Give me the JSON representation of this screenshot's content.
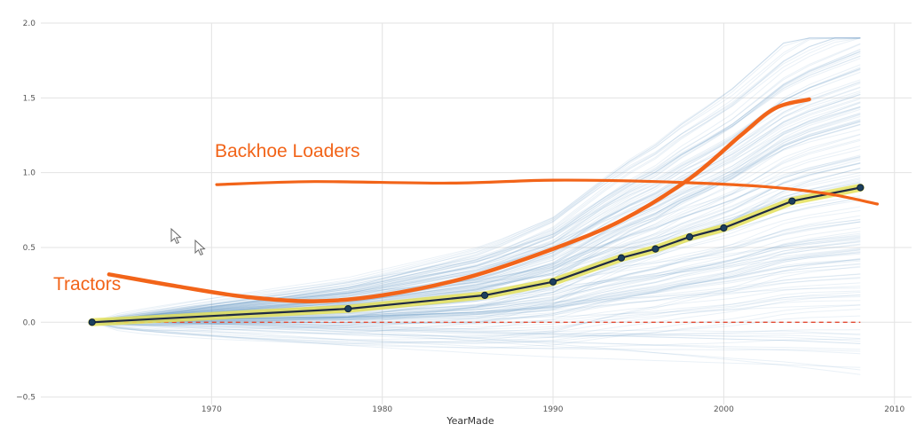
{
  "chart_data": {
    "type": "line",
    "title": "",
    "xlabel": "YearMade",
    "ylabel": "",
    "xlim": [
      1960,
      2011
    ],
    "ylim": [
      -0.55,
      2.0
    ],
    "grid": true,
    "x_ticks": [
      1970,
      1980,
      1990,
      2000,
      2010
    ],
    "y_ticks": [
      -0.5,
      0.0,
      0.5,
      1.0,
      1.5,
      2.0
    ],
    "x_tick_labels": [
      "1970",
      "1980",
      "1990",
      "2000",
      "2010"
    ],
    "y_tick_labels": [
      "−0.5",
      "0.0",
      "0.5",
      "1.0",
      "1.5",
      "2.0"
    ],
    "series": [
      {
        "role": "average",
        "color": "#1f2a44",
        "highlight_color": "#e4e05a",
        "x": [
          1963,
          1978,
          1986,
          1990,
          1994,
          1996,
          1998,
          2000,
          2004,
          2008
        ],
        "y": [
          0.0,
          0.09,
          0.18,
          0.27,
          0.43,
          0.49,
          0.57,
          0.63,
          0.81,
          0.9
        ]
      },
      {
        "role": "zero-reference",
        "color": "#e24a33",
        "style": "dashed",
        "x": [
          1963,
          2008
        ],
        "y": [
          0.0,
          0.0
        ]
      }
    ],
    "annotations": [
      {
        "text": "Backhoe Loaders",
        "color": "#f26419",
        "curve_x": [
          1970.3,
          1976,
          1984,
          1990,
          1996,
          2002,
          2006,
          2009
        ],
        "curve_y": [
          0.92,
          0.94,
          0.93,
          0.95,
          0.94,
          0.91,
          0.86,
          0.79
        ]
      },
      {
        "text": "Tractors",
        "color": "#f26419",
        "curve_x": [
          1964,
          1968,
          1972,
          1976,
          1980,
          1985,
          1990,
          1994,
          1998,
          2001,
          2003,
          2005
        ],
        "curve_y": [
          0.32,
          0.24,
          0.17,
          0.14,
          0.18,
          0.3,
          0.49,
          0.68,
          0.96,
          1.25,
          1.43,
          1.49
        ]
      }
    ],
    "ice_lines_color": "#5b93c4"
  }
}
